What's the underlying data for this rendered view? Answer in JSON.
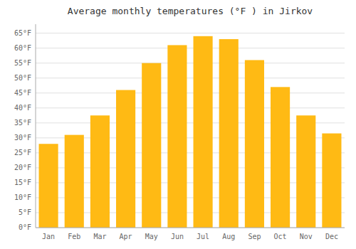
{
  "chart_data": {
    "type": "bar",
    "title": "Average monthly temperatures (°F ) in Jirkov",
    "categories": [
      "Jan",
      "Feb",
      "Mar",
      "Apr",
      "May",
      "Jun",
      "Jul",
      "Aug",
      "Sep",
      "Oct",
      "Nov",
      "Dec"
    ],
    "values": [
      28,
      31,
      37.5,
      46,
      55,
      61,
      64,
      63,
      56,
      47,
      37.5,
      31.5
    ],
    "color": "#FFBA14",
    "ylim": [
      0,
      68
    ],
    "yticks": [
      {
        "value": 0,
        "label": "0°F"
      },
      {
        "value": 5,
        "label": "5°F"
      },
      {
        "value": 10,
        "label": "10°F"
      },
      {
        "value": 15,
        "label": "15°F"
      },
      {
        "value": 20,
        "label": "20°F"
      },
      {
        "value": 25,
        "label": "25°F"
      },
      {
        "value": 30,
        "label": "30°F"
      },
      {
        "value": 35,
        "label": "35°F"
      },
      {
        "value": 40,
        "label": "40°F"
      },
      {
        "value": 45,
        "label": "45°F"
      },
      {
        "value": 50,
        "label": "50°F"
      },
      {
        "value": 55,
        "label": "55°F"
      },
      {
        "value": 60,
        "label": "60°F"
      },
      {
        "value": 65,
        "label": "65°F"
      }
    ],
    "grid": true
  }
}
